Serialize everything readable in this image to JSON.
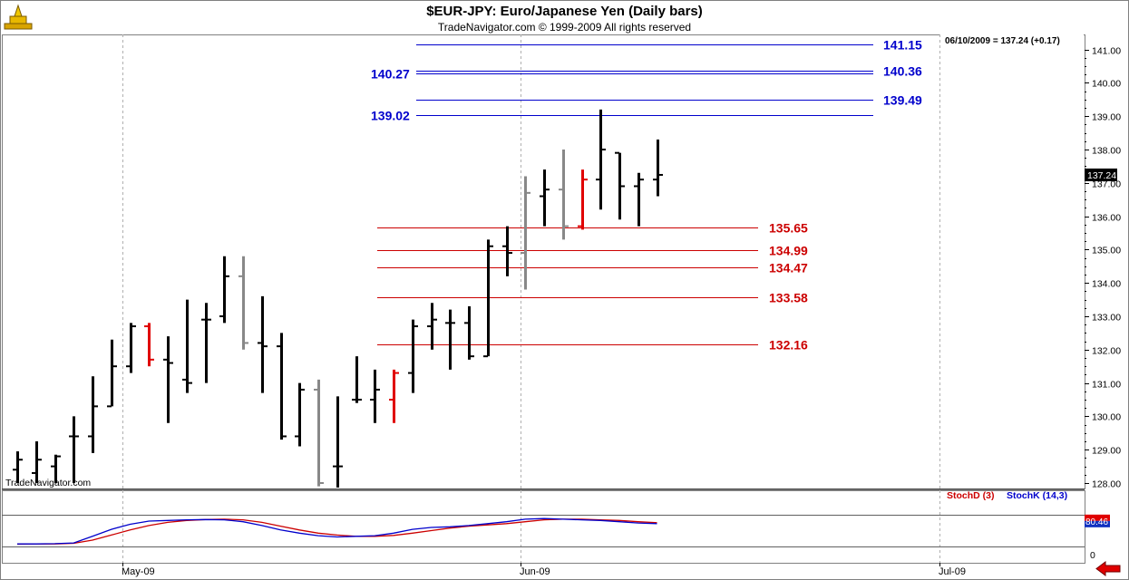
{
  "header": {
    "title": "$EUR-JPY:  Euro/Japanese Yen  (Daily bars)",
    "copyright": "TradeNavigator.com © 1999-2009 All rights reserved"
  },
  "info_box": "06/10/2009 = 137.24 (+0.17)",
  "watermark": "TradeNavigator.com",
  "colors": {
    "bar_black": "#000000",
    "bar_red": "#e00000",
    "bar_gray": "#888888",
    "blue_level": "#0000cc",
    "red_level": "#cc0000",
    "stoch_d": "#cc0000",
    "stoch_k": "#0000cc",
    "grid": "#b0b0b0",
    "last_price_bg": "#000000"
  },
  "icons": {
    "logo": "trade-navigator-logo-icon",
    "scroll": "red-left-arrow-icon"
  },
  "chart_data": [
    {
      "type": "ohlc",
      "title": "$EUR-JPY:  Euro/Japanese Yen  (Daily bars)",
      "y_ticks": [
        128,
        129,
        130,
        131,
        132,
        133,
        134,
        135,
        136,
        137,
        138,
        139,
        140,
        141
      ],
      "y_tick_labels": [
        "128.00",
        "129.00",
        "130.00",
        "131.00",
        "132.00",
        "133.00",
        "134.00",
        "135.00",
        "136.00",
        "137.00",
        "138.00",
        "139.00",
        "140.00",
        "141.00"
      ],
      "ylim": [
        127.9,
        141.6
      ],
      "x_labels": [
        "May-09",
        "Jun-09",
        "Jul-09"
      ],
      "last_price": "137.24",
      "bars": [
        {
          "o": 128.4,
          "h": 128.95,
          "l": 128.0,
          "c": 128.7,
          "color": "black"
        },
        {
          "o": 128.3,
          "h": 129.25,
          "l": 128.0,
          "c": 128.7,
          "color": "black"
        },
        {
          "o": 128.5,
          "h": 128.85,
          "l": 128.0,
          "c": 128.8,
          "color": "black"
        },
        {
          "o": 129.4,
          "h": 130.0,
          "l": 128.0,
          "c": 129.4,
          "color": "black"
        },
        {
          "o": 129.4,
          "h": 131.2,
          "l": 128.9,
          "c": 130.3,
          "color": "black"
        },
        {
          "o": 130.3,
          "h": 132.3,
          "l": 130.3,
          "c": 131.5,
          "color": "black"
        },
        {
          "o": 131.5,
          "h": 132.8,
          "l": 131.3,
          "c": 132.7,
          "color": "black"
        },
        {
          "o": 132.7,
          "h": 132.8,
          "l": 131.5,
          "c": 131.7,
          "color": "red"
        },
        {
          "o": 131.7,
          "h": 132.4,
          "l": 129.8,
          "c": 131.6,
          "color": "black"
        },
        {
          "o": 131.1,
          "h": 133.5,
          "l": 130.7,
          "c": 131.0,
          "color": "black"
        },
        {
          "o": 132.9,
          "h": 133.4,
          "l": 131.0,
          "c": 132.9,
          "color": "black"
        },
        {
          "o": 133.0,
          "h": 134.8,
          "l": 132.8,
          "c": 134.2,
          "color": "black"
        },
        {
          "o": 134.2,
          "h": 134.8,
          "l": 132.0,
          "c": 132.2,
          "color": "gray"
        },
        {
          "o": 132.2,
          "h": 133.6,
          "l": 130.7,
          "c": 132.1,
          "color": "black"
        },
        {
          "o": 132.1,
          "h": 132.5,
          "l": 129.3,
          "c": 129.4,
          "color": "black"
        },
        {
          "o": 129.4,
          "h": 131.0,
          "l": 129.1,
          "c": 130.8,
          "color": "black"
        },
        {
          "o": 130.8,
          "h": 131.1,
          "l": 127.9,
          "c": 128.0,
          "color": "gray"
        },
        {
          "o": 128.5,
          "h": 130.6,
          "l": 127.8,
          "c": 128.5,
          "color": "black"
        },
        {
          "o": 130.5,
          "h": 131.8,
          "l": 130.4,
          "c": 130.5,
          "color": "black"
        },
        {
          "o": 130.5,
          "h": 131.4,
          "l": 129.8,
          "c": 130.8,
          "color": "black"
        },
        {
          "o": 130.5,
          "h": 131.4,
          "l": 129.8,
          "c": 131.3,
          "color": "red"
        },
        {
          "o": 131.3,
          "h": 132.9,
          "l": 130.7,
          "c": 132.7,
          "color": "black"
        },
        {
          "o": 132.7,
          "h": 133.4,
          "l": 132.0,
          "c": 132.9,
          "color": "black"
        },
        {
          "o": 132.8,
          "h": 133.2,
          "l": 131.4,
          "c": 132.8,
          "color": "black"
        },
        {
          "o": 132.8,
          "h": 133.3,
          "l": 131.7,
          "c": 131.8,
          "color": "black"
        },
        {
          "o": 131.8,
          "h": 135.3,
          "l": 131.8,
          "c": 135.1,
          "color": "black"
        },
        {
          "o": 135.1,
          "h": 135.7,
          "l": 134.2,
          "c": 134.9,
          "color": "black"
        },
        {
          "o": 134.9,
          "h": 137.2,
          "l": 133.8,
          "c": 136.7,
          "color": "gray"
        },
        {
          "o": 136.6,
          "h": 137.4,
          "l": 135.7,
          "c": 136.8,
          "color": "black"
        },
        {
          "o": 136.8,
          "h": 138.0,
          "l": 135.3,
          "c": 135.7,
          "color": "gray"
        },
        {
          "o": 135.7,
          "h": 137.4,
          "l": 135.6,
          "c": 137.1,
          "color": "red"
        },
        {
          "o": 137.1,
          "h": 139.2,
          "l": 136.2,
          "c": 138.0,
          "color": "black"
        },
        {
          "o": 137.9,
          "h": 137.9,
          "l": 135.9,
          "c": 136.9,
          "color": "black"
        },
        {
          "o": 136.9,
          "h": 137.3,
          "l": 135.7,
          "c": 137.1,
          "color": "black"
        },
        {
          "o": 137.1,
          "h": 138.3,
          "l": 136.6,
          "c": 137.24,
          "color": "black"
        }
      ],
      "blue_levels": [
        {
          "value": 141.15,
          "label": "141.15",
          "side": "right"
        },
        {
          "value": 140.36,
          "label": "140.36",
          "side": "right"
        },
        {
          "value": 140.27,
          "label": "140.27",
          "side": "left"
        },
        {
          "value": 139.49,
          "label": "139.49",
          "side": "right"
        },
        {
          "value": 139.02,
          "label": "139.02",
          "side": "left"
        }
      ],
      "red_levels": [
        {
          "value": 135.65,
          "label": "135.65"
        },
        {
          "value": 134.99,
          "label": "134.99"
        },
        {
          "value": 134.47,
          "label": "134.47"
        },
        {
          "value": 133.58,
          "label": "133.58"
        },
        {
          "value": 132.16,
          "label": "132.16"
        }
      ]
    },
    {
      "type": "line",
      "series": [
        {
          "name": "StochD (3)",
          "color": "red",
          "values": [
            7,
            8,
            8,
            10,
            20,
            36,
            52,
            66,
            76,
            82,
            85,
            86,
            84,
            76,
            64,
            52,
            42,
            36,
            32,
            32,
            35,
            42,
            50,
            58,
            64,
            68,
            72,
            78,
            84,
            86,
            86,
            84,
            82,
            78,
            75
          ]
        },
        {
          "name": "StochK (14,3)",
          "color": "blue",
          "values": [
            8,
            8,
            9,
            11,
            32,
            54,
            70,
            80,
            82,
            84,
            85,
            84,
            78,
            66,
            52,
            42,
            34,
            30,
            32,
            34,
            42,
            54,
            60,
            62,
            66,
            72,
            78,
            86,
            88,
            86,
            84,
            82,
            78,
            74,
            72
          ]
        }
      ],
      "ylim": [
        0,
        100
      ],
      "y_labels": [
        "0"
      ],
      "last_value": "80.46"
    }
  ]
}
